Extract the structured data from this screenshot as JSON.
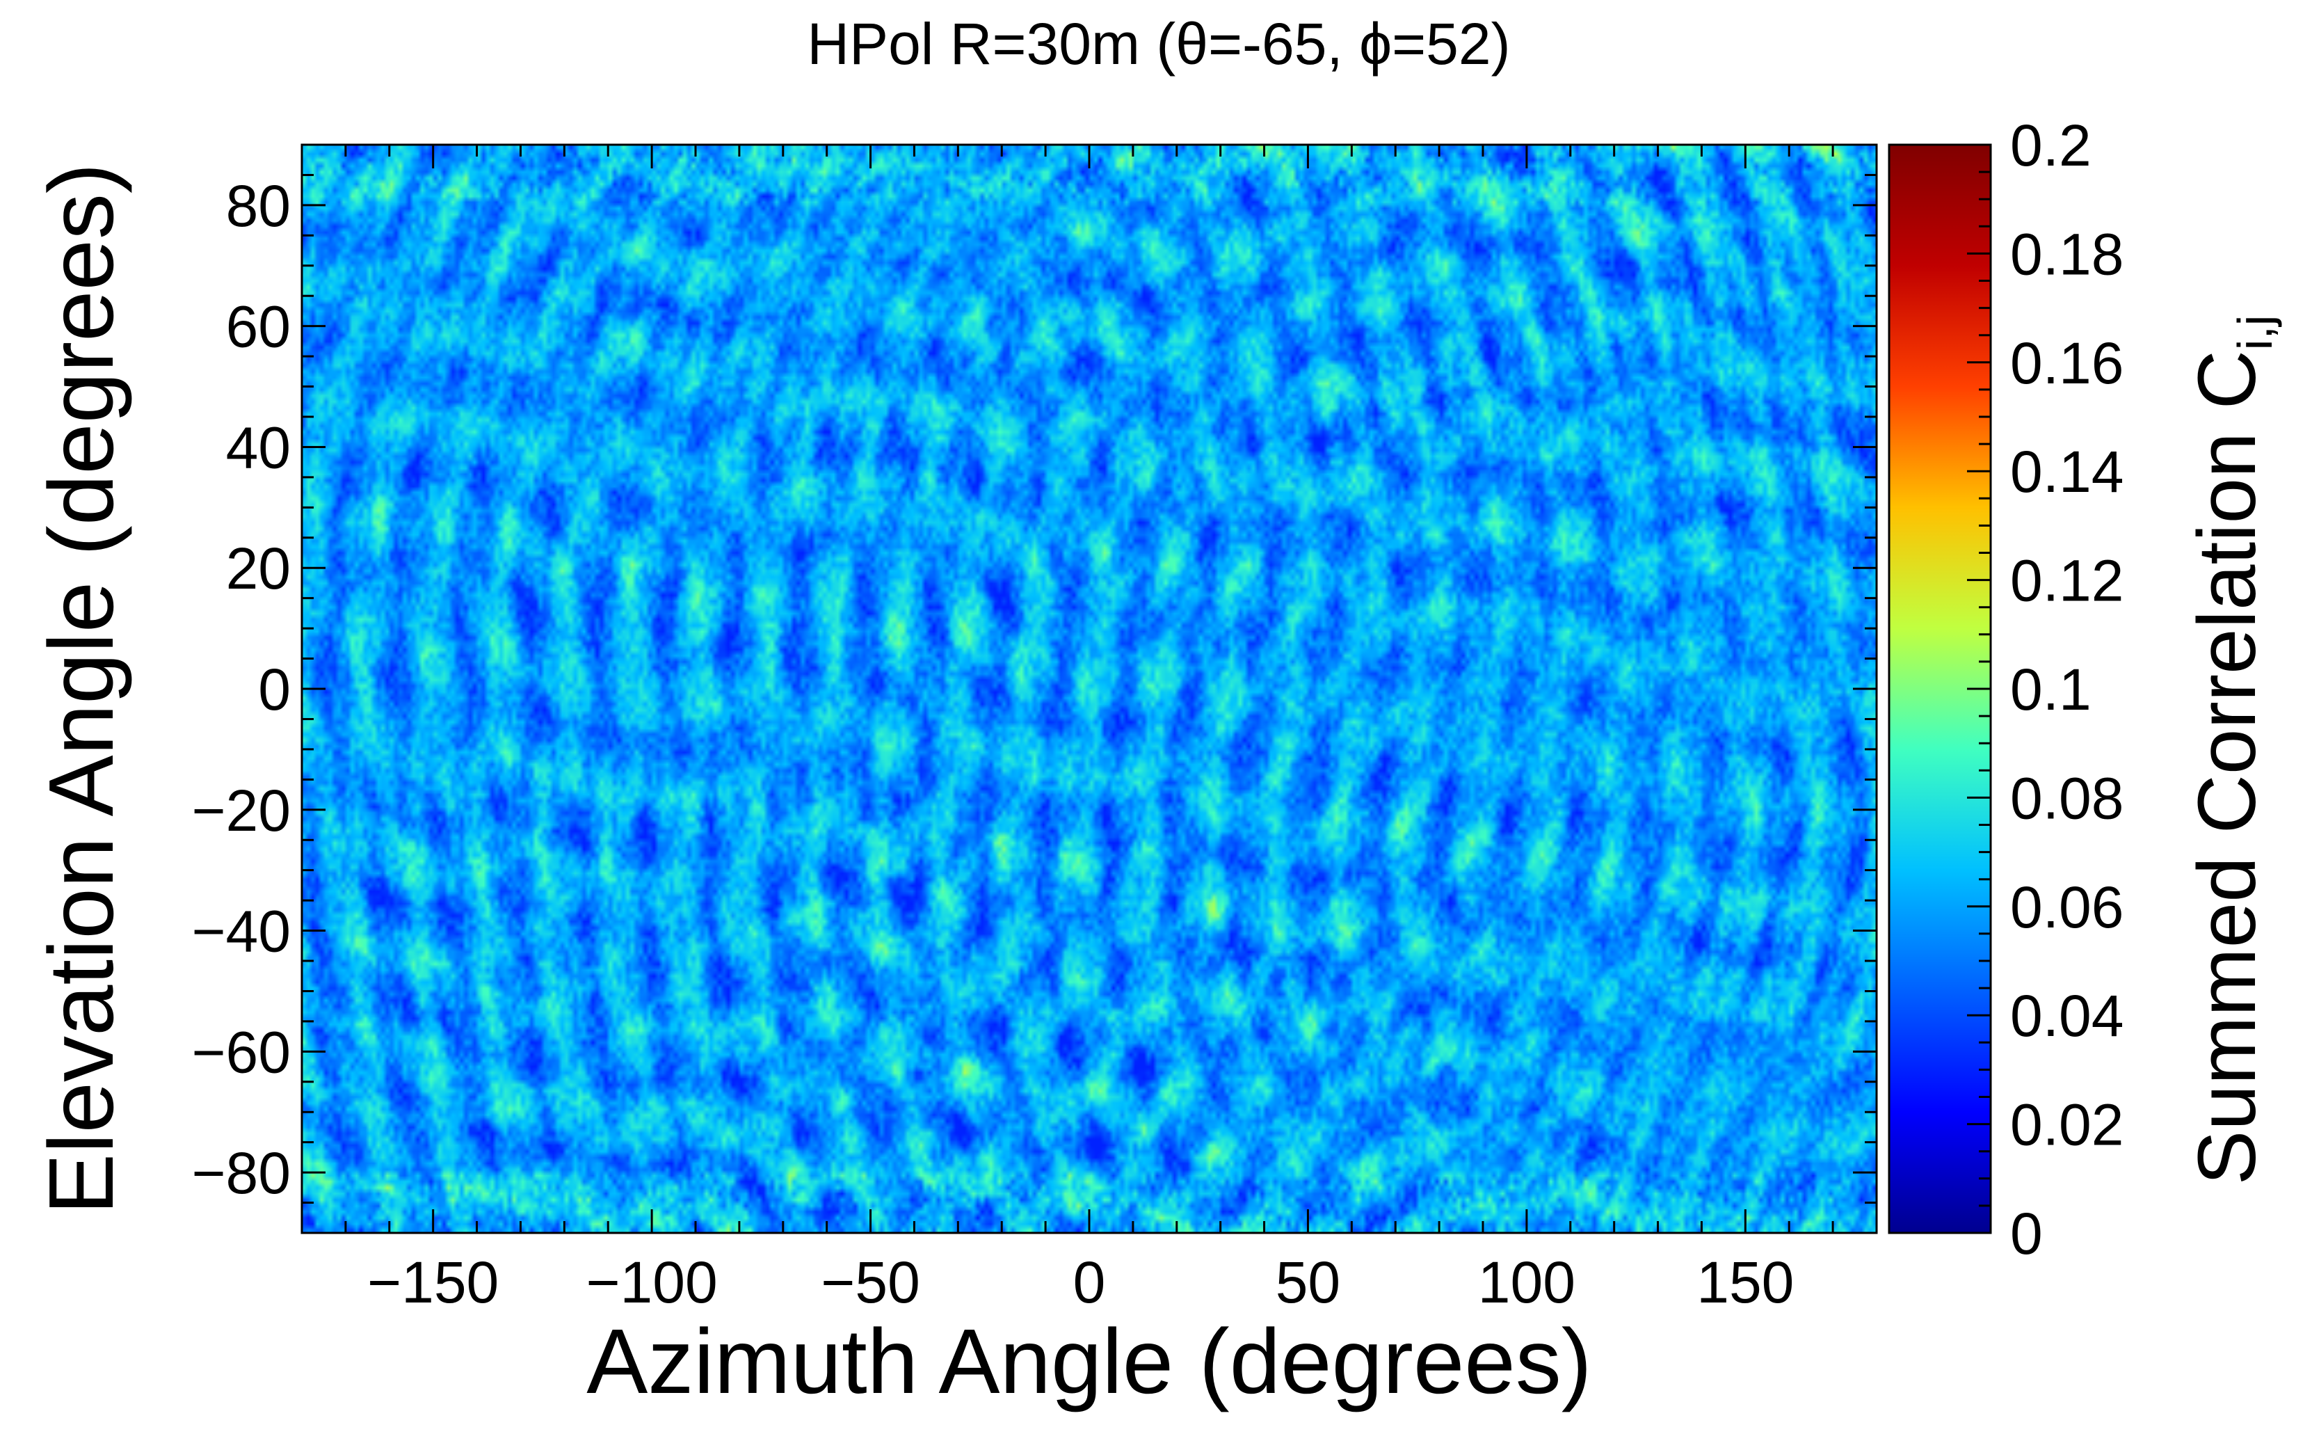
{
  "chart_data": {
    "type": "heatmap",
    "title": "HPol R=30m (θ=-65, ϕ=52)",
    "xlabel": "Azimuth Angle (degrees)",
    "ylabel": "Elevation Angle (degrees)",
    "zlabel": "Summed Correlation C",
    "zlabel_subscript": "i,j",
    "xlim": [
      -180,
      180
    ],
    "ylim": [
      -90,
      90
    ],
    "zlim": [
      0,
      0.2
    ],
    "x_ticks": [
      -150,
      -100,
      -50,
      0,
      50,
      100,
      150
    ],
    "x_tick_labels": [
      "−150",
      "−100",
      "−50",
      "0",
      "50",
      "100",
      "150"
    ],
    "y_ticks": [
      -80,
      -60,
      -40,
      -20,
      0,
      20,
      40,
      60,
      80
    ],
    "y_tick_labels": [
      "−80",
      "−60",
      "−40",
      "−20",
      "0",
      "20",
      "40",
      "60",
      "80"
    ],
    "z_ticks": [
      0,
      0.02,
      0.04,
      0.06,
      0.08,
      0.1,
      0.12,
      0.14,
      0.16,
      0.18,
      0.2
    ],
    "z_tick_labels": [
      "0",
      "0.02",
      "0.04",
      "0.06",
      "0.08",
      "0.1",
      "0.12",
      "0.14",
      "0.16",
      "0.18",
      "0.2"
    ],
    "colormap": [
      "#00008f",
      "#0000ff",
      "#0060ff",
      "#00c0ff",
      "#40ffc0",
      "#c0ff40",
      "#ffc000",
      "#ff4000",
      "#c00000",
      "#800000"
    ],
    "value_range_observed": [
      0.03,
      0.12
    ],
    "typical_value": 0.06,
    "grid": false
  }
}
